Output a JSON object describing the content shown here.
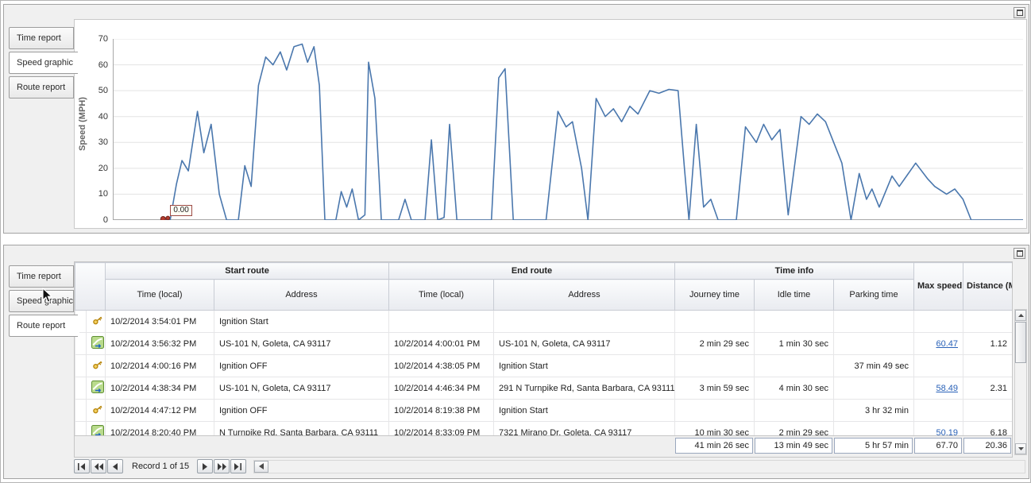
{
  "top_panel": {
    "tabs": [
      {
        "label": "Time report",
        "selected": false
      },
      {
        "label": "Speed graphic",
        "selected": true
      },
      {
        "label": "Route report",
        "selected": false
      }
    ]
  },
  "bottom_panel": {
    "tabs": [
      {
        "label": "Time report",
        "selected": false
      },
      {
        "label": "Speed graphic",
        "selected": false
      },
      {
        "label": "Route report",
        "selected": true
      }
    ]
  },
  "chart_data": {
    "type": "line",
    "title": "",
    "xlabel": "",
    "ylabel": "Speed (MPH)",
    "ylim": [
      0,
      70
    ],
    "yticks": [
      0,
      10,
      20,
      30,
      40,
      50,
      60,
      70
    ],
    "grid": true,
    "legend": "none",
    "line_color": "#4a77ad",
    "start_label": "0.00",
    "x_unit": "percent-of-timeline",
    "points": [
      [
        5.7,
        0
      ],
      [
        6.3,
        0
      ],
      [
        7.0,
        14
      ],
      [
        7.6,
        23
      ],
      [
        8.3,
        19
      ],
      [
        9.3,
        42
      ],
      [
        10.0,
        26
      ],
      [
        10.8,
        37
      ],
      [
        11.7,
        10
      ],
      [
        12.5,
        0
      ],
      [
        13.8,
        0
      ],
      [
        14.5,
        21
      ],
      [
        15.2,
        13
      ],
      [
        16.0,
        52
      ],
      [
        16.8,
        63
      ],
      [
        17.6,
        60
      ],
      [
        18.4,
        65
      ],
      [
        19.1,
        58
      ],
      [
        19.9,
        67
      ],
      [
        20.8,
        68
      ],
      [
        21.4,
        61
      ],
      [
        22.1,
        67
      ],
      [
        22.7,
        52
      ],
      [
        23.3,
        0
      ],
      [
        24.5,
        0
      ],
      [
        25.1,
        11
      ],
      [
        25.7,
        5
      ],
      [
        26.3,
        12
      ],
      [
        27.0,
        0
      ],
      [
        27.7,
        2
      ],
      [
        28.1,
        61
      ],
      [
        28.8,
        47
      ],
      [
        29.5,
        0
      ],
      [
        31.4,
        0
      ],
      [
        32.1,
        8
      ],
      [
        32.8,
        0
      ],
      [
        34.3,
        0
      ],
      [
        35.0,
        31
      ],
      [
        35.7,
        0
      ],
      [
        36.4,
        1
      ],
      [
        37.0,
        37
      ],
      [
        37.8,
        0
      ],
      [
        41.6,
        0
      ],
      [
        42.4,
        55
      ],
      [
        43.1,
        58.5
      ],
      [
        44.0,
        0
      ],
      [
        47.6,
        0
      ],
      [
        48.9,
        42
      ],
      [
        49.8,
        36
      ],
      [
        50.5,
        38
      ],
      [
        51.5,
        20
      ],
      [
        52.2,
        0
      ],
      [
        53.1,
        47
      ],
      [
        54.1,
        40
      ],
      [
        55.0,
        43
      ],
      [
        55.9,
        38
      ],
      [
        56.8,
        44
      ],
      [
        57.7,
        41
      ],
      [
        59.0,
        50
      ],
      [
        60.0,
        49
      ],
      [
        61.1,
        50.5
      ],
      [
        62.1,
        50
      ],
      [
        62.8,
        20
      ],
      [
        63.3,
        0
      ],
      [
        64.1,
        37
      ],
      [
        64.9,
        5
      ],
      [
        65.7,
        8
      ],
      [
        66.5,
        0
      ],
      [
        68.5,
        0
      ],
      [
        69.5,
        36
      ],
      [
        70.7,
        30
      ],
      [
        71.5,
        37
      ],
      [
        72.4,
        31
      ],
      [
        73.3,
        35
      ],
      [
        74.2,
        2
      ],
      [
        75.6,
        40
      ],
      [
        76.5,
        37
      ],
      [
        77.4,
        41
      ],
      [
        78.3,
        38
      ],
      [
        79.2,
        30
      ],
      [
        80.1,
        22
      ],
      [
        81.1,
        0
      ],
      [
        82.0,
        18
      ],
      [
        82.8,
        8
      ],
      [
        83.4,
        12
      ],
      [
        84.2,
        5
      ],
      [
        85.6,
        17
      ],
      [
        86.4,
        13
      ],
      [
        88.2,
        22
      ],
      [
        89.5,
        16
      ],
      [
        90.3,
        13
      ],
      [
        91.6,
        10
      ],
      [
        92.5,
        12
      ],
      [
        93.4,
        8
      ],
      [
        94.3,
        0
      ],
      [
        100,
        0
      ]
    ]
  },
  "table": {
    "link_color": "#2a62b8",
    "group_headers": [
      {
        "label": "Start route"
      },
      {
        "label": "End route"
      },
      {
        "label": "Time info"
      }
    ],
    "columns": [
      "Time (local)",
      "Address",
      "Time (local)",
      "Address",
      "Journey time",
      "Idle time",
      "Parking time",
      "Max speed (MPH)",
      "Distance (Miles)"
    ],
    "rows": [
      {
        "icon": "key",
        "start_time": "10/2/2014 3:54:01 PM",
        "start_address": "Ignition Start",
        "end_time": "",
        "end_address": "",
        "journey": "",
        "idle": "",
        "parking": "",
        "max_speed": "",
        "distance": ""
      },
      {
        "icon": "route",
        "start_time": "10/2/2014 3:56:32 PM",
        "start_address": "US-101 N, Goleta, CA 93117",
        "end_time": "10/2/2014 4:00:01 PM",
        "end_address": "US-101 N, Goleta, CA 93117",
        "journey": "2 min 29 sec",
        "idle": "1 min 30 sec",
        "parking": "",
        "max_speed": "60.47",
        "distance": "1.12"
      },
      {
        "icon": "key",
        "start_time": "10/2/2014 4:00:16 PM",
        "start_address": "Ignition OFF",
        "end_time": "10/2/2014 4:38:05 PM",
        "end_address": "Ignition Start",
        "journey": "",
        "idle": "",
        "parking": "37 min 49 sec",
        "max_speed": "",
        "distance": ""
      },
      {
        "icon": "route",
        "start_time": "10/2/2014 4:38:34 PM",
        "start_address": "US-101 N, Goleta, CA 93117",
        "end_time": "10/2/2014 4:46:34 PM",
        "end_address": "291 N Turnpike Rd, Santa Barbara, CA 93111",
        "journey": "3 min 59 sec",
        "idle": "4 min 30 sec",
        "parking": "",
        "max_speed": "58.49",
        "distance": "2.31"
      },
      {
        "icon": "key",
        "start_time": "10/2/2014 4:47:12 PM",
        "start_address": "Ignition OFF",
        "end_time": "10/2/2014 8:19:38 PM",
        "end_address": "Ignition Start",
        "journey": "",
        "idle": "",
        "parking": "3 hr 32 min",
        "max_speed": "",
        "distance": ""
      },
      {
        "icon": "route",
        "start_time": "10/2/2014 8:20:40 PM",
        "start_address": "N Turnpike Rd, Santa Barbara, CA 93111",
        "end_time": "10/2/2014 8:33:09 PM",
        "end_address": "7321 Mirano Dr, Goleta, CA 93117",
        "journey": "10 min 30 sec",
        "idle": "2 min 29 sec",
        "parking": "",
        "max_speed": "50.19",
        "distance": "6.18"
      }
    ],
    "summary": {
      "journey": "41 min 26 sec",
      "idle": "13 min 49 sec",
      "parking": "5 hr 57 min",
      "max_speed": "67.70",
      "distance": "20.36"
    },
    "pager": {
      "record_text": "Record 1 of 15"
    }
  }
}
